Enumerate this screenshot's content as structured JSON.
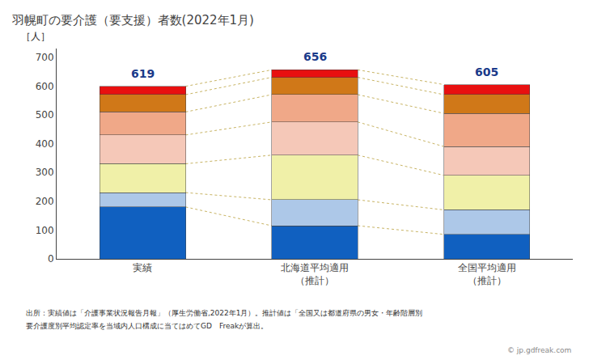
{
  "chart_data": {
    "type": "bar",
    "stacked": true,
    "title": "羽幌町の要介護（要支援）者数(2022年1月)",
    "ylabel": "［人］",
    "categories": [
      "実績",
      "北海道平均適用\n（推計）",
      "全国平均適用\n（推計）"
    ],
    "series": [
      {
        "color": "#1060c0",
        "values": [
          180,
          115,
          85
        ]
      },
      {
        "color": "#adc8e8",
        "values": [
          50,
          90,
          85
        ]
      },
      {
        "color": "#f0f0a8",
        "values": [
          100,
          155,
          120
        ]
      },
      {
        "color": "#f5c8b8",
        "values": [
          100,
          115,
          100
        ]
      },
      {
        "color": "#f0a888",
        "values": [
          80,
          95,
          115
        ]
      },
      {
        "color": "#d07818",
        "values": [
          60,
          60,
          65
        ]
      },
      {
        "color": "#e81010",
        "values": [
          29,
          26,
          35
        ]
      }
    ],
    "totals": [
      619,
      656,
      605
    ],
    "ylim": [
      0,
      730
    ],
    "yticks": [
      0,
      100,
      200,
      300,
      400,
      500,
      600,
      700
    ],
    "grid": false,
    "annotations": [
      "出所：実績値は「介護事業状況報告月報」（厚生労働省,2022年1月）。推計値は「全国又は都道府県の男女・年齢階層別",
      "要介護度別平均認定率を当域内人口構成に当てはめてGD　Freakが算出。",
      "© jp.gdfreak.com"
    ]
  }
}
